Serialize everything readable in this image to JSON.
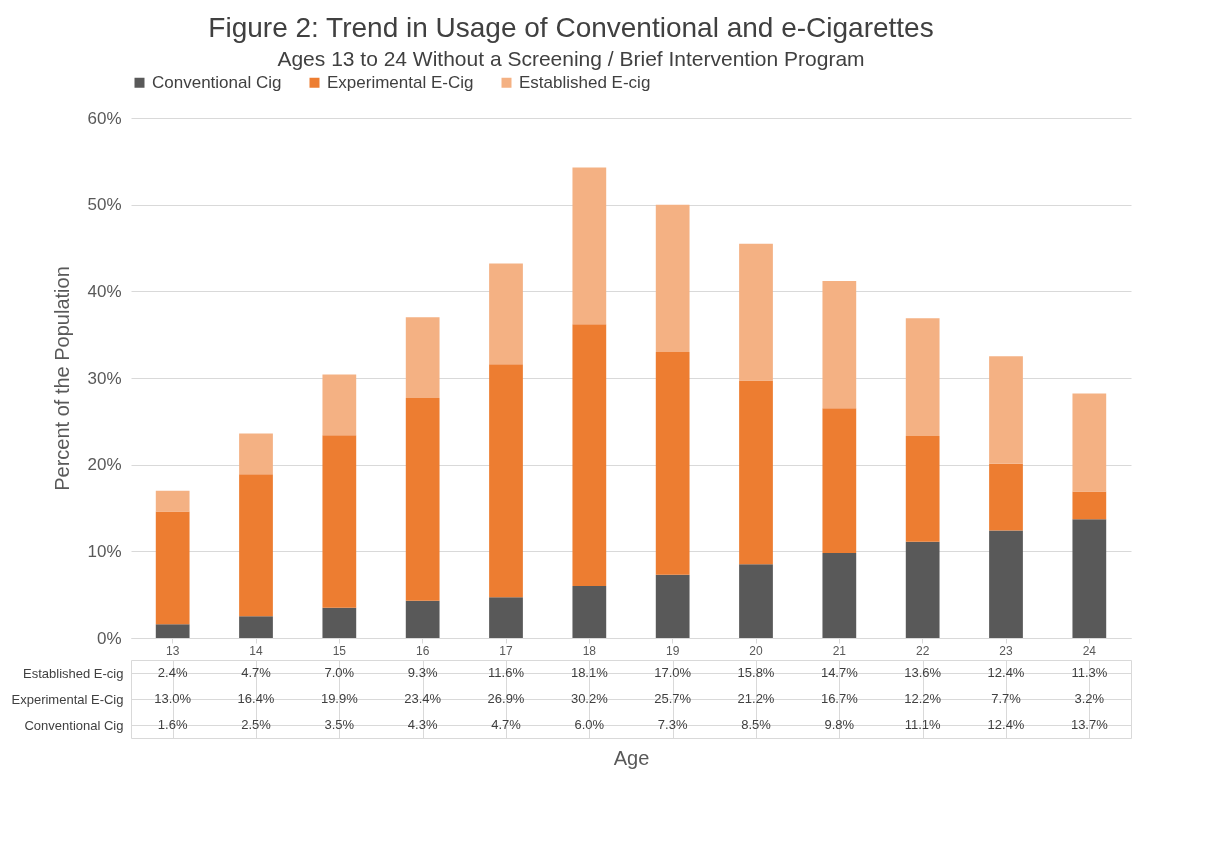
{
  "chart_data": {
    "type": "bar",
    "title": "Figure 2: Trend in Usage of Conventional and e-Cigarettes",
    "subtitle": "Ages 13 to 24 Without a Screening / Brief Intervention Program",
    "xlabel": "Age",
    "ylabel": "Percent of the Population",
    "categories": [
      "13",
      "14",
      "15",
      "16",
      "17",
      "18",
      "19",
      "20",
      "21",
      "22",
      "23",
      "24"
    ],
    "stacked": true,
    "series": [
      {
        "name": "Conventional Cig",
        "color": "#595959",
        "values": [
          1.6,
          2.5,
          3.5,
          4.3,
          4.7,
          6.0,
          7.3,
          8.5,
          9.8,
          11.1,
          12.4,
          13.7
        ],
        "value_labels": [
          "1.6%",
          "2.5%",
          "3.5%",
          "4.3%",
          "4.7%",
          "6.0%",
          "7.3%",
          "8.5%",
          "9.8%",
          "11.1%",
          "12.4%",
          "13.7%"
        ]
      },
      {
        "name": "Experimental E-Cig",
        "color": "#ed7d31",
        "values": [
          13.0,
          16.4,
          19.9,
          23.4,
          26.9,
          30.2,
          25.7,
          21.2,
          16.7,
          12.2,
          7.7,
          3.2
        ],
        "value_labels": [
          "13.0%",
          "16.4%",
          "19.9%",
          "23.4%",
          "26.9%",
          "30.2%",
          "25.7%",
          "21.2%",
          "16.7%",
          "12.2%",
          "7.7%",
          "3.2%"
        ]
      },
      {
        "name": "Established E-cig",
        "color": "#f4b183",
        "values": [
          2.4,
          4.7,
          7.0,
          9.3,
          11.6,
          18.1,
          17.0,
          15.8,
          14.7,
          13.6,
          12.4,
          11.3
        ],
        "value_labels": [
          "2.4%",
          "4.7%",
          "7.0%",
          "9.3%",
          "11.6%",
          "18.1%",
          "17.0%",
          "15.8%",
          "14.7%",
          "13.6%",
          "12.4%",
          "11.3%"
        ]
      }
    ],
    "ylim": [
      0,
      60
    ],
    "yticks": [
      {
        "value": 0,
        "label": "0%"
      },
      {
        "value": 10,
        "label": "10%"
      },
      {
        "value": 20,
        "label": "20%"
      },
      {
        "value": 30,
        "label": "30%"
      },
      {
        "value": 40,
        "label": "40%"
      },
      {
        "value": 50,
        "label": "50%"
      },
      {
        "value": 60,
        "label": "60%"
      }
    ],
    "grid": "y",
    "legend": "top"
  }
}
